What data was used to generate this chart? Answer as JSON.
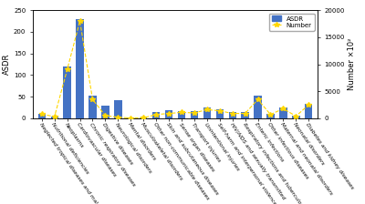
{
  "categories": [
    "Neglected tropical diseases and malaria",
    "Nutritional deficiencies",
    "Neoplasms",
    "Cardiovascular diseases",
    "Chronic respiratory diseases",
    "Digestive diseases",
    "Neurological disorders",
    "Mental disorders",
    "Musculoskeletal disorders",
    "Other non-communicable diseases",
    "Skin and subcutaneous diseases",
    "Sense organ diseases",
    "Transport injuries",
    "Unintentional injuries",
    "Self-harm and interpersonal violence",
    "HIV/AIDS and sexually transmitted",
    "Respiratory infections and tuberculosis",
    "Enteric infections",
    "Other infectious diseases",
    "Maternal and neonatal disorders",
    "Neonatal disorders",
    "Diabetes and kidney diseases"
  ],
  "asdr_values": [
    10,
    5,
    120,
    230,
    52,
    30,
    42,
    2,
    2,
    15,
    18,
    17,
    16,
    25,
    20,
    15,
    14,
    52,
    10,
    26,
    6,
    33
  ],
  "number_values": [
    800,
    300,
    9000,
    18000,
    3500,
    500,
    200,
    50,
    80,
    700,
    900,
    1100,
    1000,
    1600,
    1400,
    900,
    900,
    3500,
    700,
    1800,
    400,
    2500
  ],
  "bar_color": "#4472C4",
  "line_color": "#FFD700",
  "ylabel_left": "ASDR",
  "ylabel_right": "Number ×10²",
  "ylim_left": [
    0,
    250
  ],
  "ylim_right": [
    0,
    20000
  ],
  "yticks_left": [
    0,
    50,
    100,
    150,
    200,
    250
  ],
  "yticks_right": [
    0,
    5000,
    10000,
    15000,
    20000
  ],
  "legend_asdr": "ASDR",
  "legend_number": "Number",
  "background_color": "#ffffff",
  "label_fontsize": 6,
  "tick_fontsize": 5,
  "xtick_fontsize": 4.2,
  "legend_fontsize": 5
}
